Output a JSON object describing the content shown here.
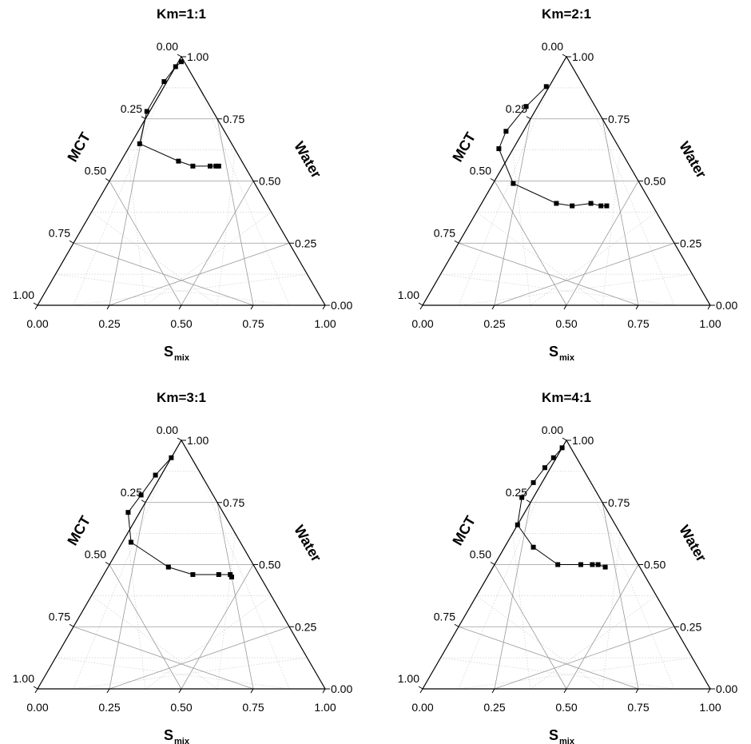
{
  "chart_data": [
    {
      "type": "scatter",
      "subtype": "ternary",
      "title": "Km=1:1",
      "axes": {
        "left": "MCT",
        "right": "Water",
        "bottom_main": "S",
        "bottom_sub": "mix"
      },
      "ticks": [
        "0.00",
        "0.25",
        "0.50",
        "0.75",
        "1.00"
      ],
      "grid": true,
      "series": [
        {
          "points": [
            {
              "smix": 0.01,
              "water": 0.98
            },
            {
              "smix": 0.0,
              "water": 0.96
            },
            {
              "smix": -0.01,
              "water": 0.9
            },
            {
              "smix": -0.01,
              "water": 0.78
            },
            {
              "smix": 0.03,
              "water": 0.65
            },
            {
              "smix": 0.2,
              "water": 0.58
            },
            {
              "smix": 0.26,
              "water": 0.56
            },
            {
              "smix": 0.32,
              "water": 0.56
            },
            {
              "smix": 0.34,
              "water": 0.56
            },
            {
              "smix": 0.35,
              "water": 0.56
            }
          ]
        }
      ]
    },
    {
      "type": "scatter",
      "subtype": "ternary",
      "title": "Km=2:1",
      "axes": {
        "left": "MCT",
        "right": "Water",
        "bottom_main": "S",
        "bottom_sub": "mix"
      },
      "ticks": [
        "0.00",
        "0.25",
        "0.50",
        "0.75",
        "1.00"
      ],
      "grid": true,
      "series": [
        {
          "points": [
            {
              "smix": -0.01,
              "water": 0.88
            },
            {
              "smix": -0.04,
              "water": 0.8
            },
            {
              "smix": -0.06,
              "water": 0.7
            },
            {
              "smix": -0.05,
              "water": 0.63
            },
            {
              "smix": 0.07,
              "water": 0.49
            },
            {
              "smix": 0.26,
              "water": 0.41
            },
            {
              "smix": 0.32,
              "water": 0.4
            },
            {
              "smix": 0.38,
              "water": 0.41
            },
            {
              "smix": 0.42,
              "water": 0.4
            },
            {
              "smix": 0.44,
              "water": 0.4
            }
          ]
        }
      ]
    },
    {
      "type": "scatter",
      "subtype": "ternary",
      "title": "Km=3:1",
      "axes": {
        "left": "MCT",
        "right": "Water",
        "bottom_main": "S",
        "bottom_sub": "mix"
      },
      "ticks": [
        "0.00",
        "0.25",
        "0.50",
        "0.75",
        "1.00"
      ],
      "grid": true,
      "series": [
        {
          "points": [
            {
              "smix": 0.0,
              "water": 0.93
            },
            {
              "smix": -0.02,
              "water": 0.86
            },
            {
              "smix": -0.03,
              "water": 0.78
            },
            {
              "smix": -0.04,
              "water": 0.71
            },
            {
              "smix": 0.03,
              "water": 0.59
            },
            {
              "smix": 0.21,
              "water": 0.49
            },
            {
              "smix": 0.31,
              "water": 0.46
            },
            {
              "smix": 0.4,
              "water": 0.46
            },
            {
              "smix": 0.44,
              "water": 0.46
            },
            {
              "smix": 0.45,
              "water": 0.45
            }
          ]
        }
      ]
    },
    {
      "type": "scatter",
      "subtype": "ternary",
      "title": "Km=4:1",
      "axes": {
        "left": "MCT",
        "right": "Water",
        "bottom_main": "S",
        "bottom_sub": "mix"
      },
      "ticks": [
        "0.00",
        "0.25",
        "0.50",
        "0.75",
        "1.00"
      ],
      "grid": true,
      "series": [
        {
          "points": [
            {
              "smix": 0.0,
              "water": 0.97
            },
            {
              "smix": -0.01,
              "water": 0.93
            },
            {
              "smix": -0.02,
              "water": 0.89
            },
            {
              "smix": -0.03,
              "water": 0.83
            },
            {
              "smix": -0.04,
              "water": 0.77
            },
            {
              "smix": 0.0,
              "water": 0.66
            },
            {
              "smix": 0.1,
              "water": 0.57
            },
            {
              "smix": 0.22,
              "water": 0.5
            },
            {
              "smix": 0.3,
              "water": 0.5
            },
            {
              "smix": 0.34,
              "water": 0.5
            },
            {
              "smix": 0.36,
              "water": 0.5
            },
            {
              "smix": 0.39,
              "water": 0.49
            }
          ]
        }
      ]
    }
  ]
}
